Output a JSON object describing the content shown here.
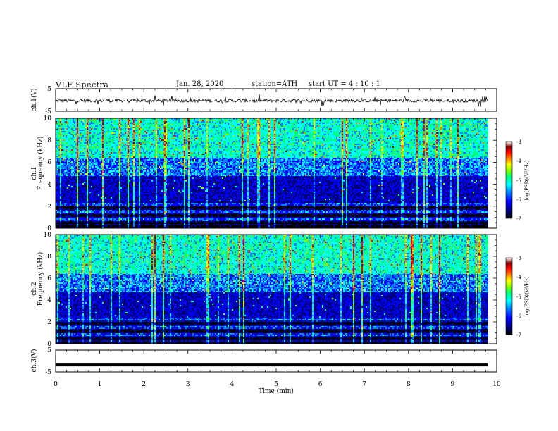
{
  "header": {
    "title": "VLF  Spectra",
    "date": "Jan. 28, 2020",
    "station": "station=ATH",
    "start": "start  UT  =   4  : 10 : 1"
  },
  "colors": {
    "spectrogram_scale": [
      "#000000",
      "#000080",
      "#0000ff",
      "#0080ff",
      "#00ffff",
      "#00ff80",
      "#80ff00",
      "#ffff00",
      "#ff8000",
      "#ff0000",
      "#800000",
      "#ffffff"
    ],
    "trace": "#000000"
  },
  "chart_data": [
    {
      "type": "line",
      "title": "VLF  Spectra",
      "ylabel": "ch.1(V)",
      "ylim": [
        -5,
        5
      ],
      "yticks": [
        "5",
        "-5"
      ],
      "xlim": [
        0,
        10
      ],
      "series": [
        {
          "x_range": [
            0,
            9.8
          ],
          "values_range": [
            -1.5,
            1.5
          ],
          "mean": -0.3
        }
      ]
    },
    {
      "type": "heatmap",
      "ylabel": "ch.1\nFrequency (kHz)",
      "ylim": [
        0,
        10
      ],
      "yticks": [
        "0",
        "2",
        "4",
        "6",
        "8",
        "10"
      ],
      "xlim": [
        0,
        10
      ],
      "x_extent": [
        0,
        9.8
      ],
      "colorbar": {
        "label": "log(PSD)(V²/Hz)",
        "range": [
          -7,
          -3
        ],
        "ticks": [
          "-3",
          "-4",
          "-5",
          "-6",
          "-7"
        ]
      }
    },
    {
      "type": "heatmap",
      "ylabel": "ch.2\nFrequency (kHz)",
      "ylim": [
        0,
        10
      ],
      "yticks": [
        "0",
        "2",
        "4",
        "6",
        "8",
        "10"
      ],
      "xlim": [
        0,
        10
      ],
      "x_extent": [
        0,
        9.8
      ],
      "colorbar": {
        "label": "log(PSD)(V²/Hz)",
        "range": [
          -7,
          -3
        ],
        "ticks": [
          "-3",
          "-4",
          "-5",
          "-6",
          "-7"
        ]
      }
    },
    {
      "type": "line",
      "ylabel": "ch.3(V)",
      "ylim": [
        -5,
        5
      ],
      "yticks": [
        "5",
        "-5"
      ],
      "xlim": [
        0,
        10
      ],
      "xlabel": "Time  (min)",
      "xticks": [
        "0",
        "1",
        "2",
        "3",
        "4",
        "5",
        "6",
        "7",
        "8",
        "9",
        "10"
      ],
      "series": [
        {
          "x_range": [
            0,
            9.8
          ],
          "values": [
            -1.8
          ]
        }
      ]
    }
  ]
}
